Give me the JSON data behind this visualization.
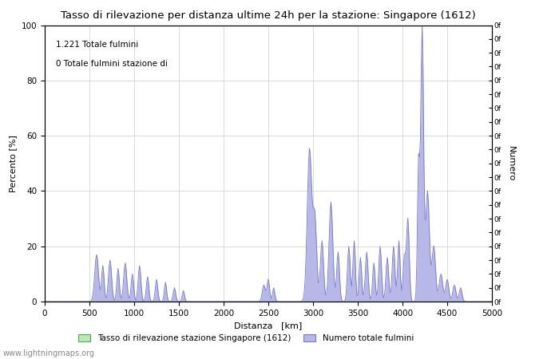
{
  "title": "Tasso di rilevazione per distanza ultime 24h per la stazione: Singapore (1612)",
  "xlabel": "Distanza   [km]",
  "ylabel_left": "Percento [%]",
  "ylabel_right": "Numero",
  "annotation1": "1.221 Totale fulmini",
  "annotation2": "0 Totale fulmini stazione di",
  "watermark": "www.lightningmaps.org",
  "legend1": "Tasso di rilevazione stazione Singapore (1612)",
  "legend2": "Numero totale fulmini",
  "xlim": [
    0,
    5000
  ],
  "ylim_left": [
    0,
    100
  ],
  "color_fill_blue": "#b8b8e8",
  "color_fill_green": "#b8e8b8",
  "color_line_blue": "#7777cc",
  "color_line_green": "#55aa55",
  "background": "#ffffff",
  "grid_color": "#cccccc",
  "right_tick_labels": [
    "0f",
    "0f",
    "0f",
    "0f",
    "0f",
    "0f",
    "0f",
    "0f",
    "0f",
    "0f",
    "0f",
    "0f",
    "0f",
    "0f",
    "0f",
    "0f",
    "0f",
    "0f",
    "0f",
    "0f",
    "0f"
  ]
}
